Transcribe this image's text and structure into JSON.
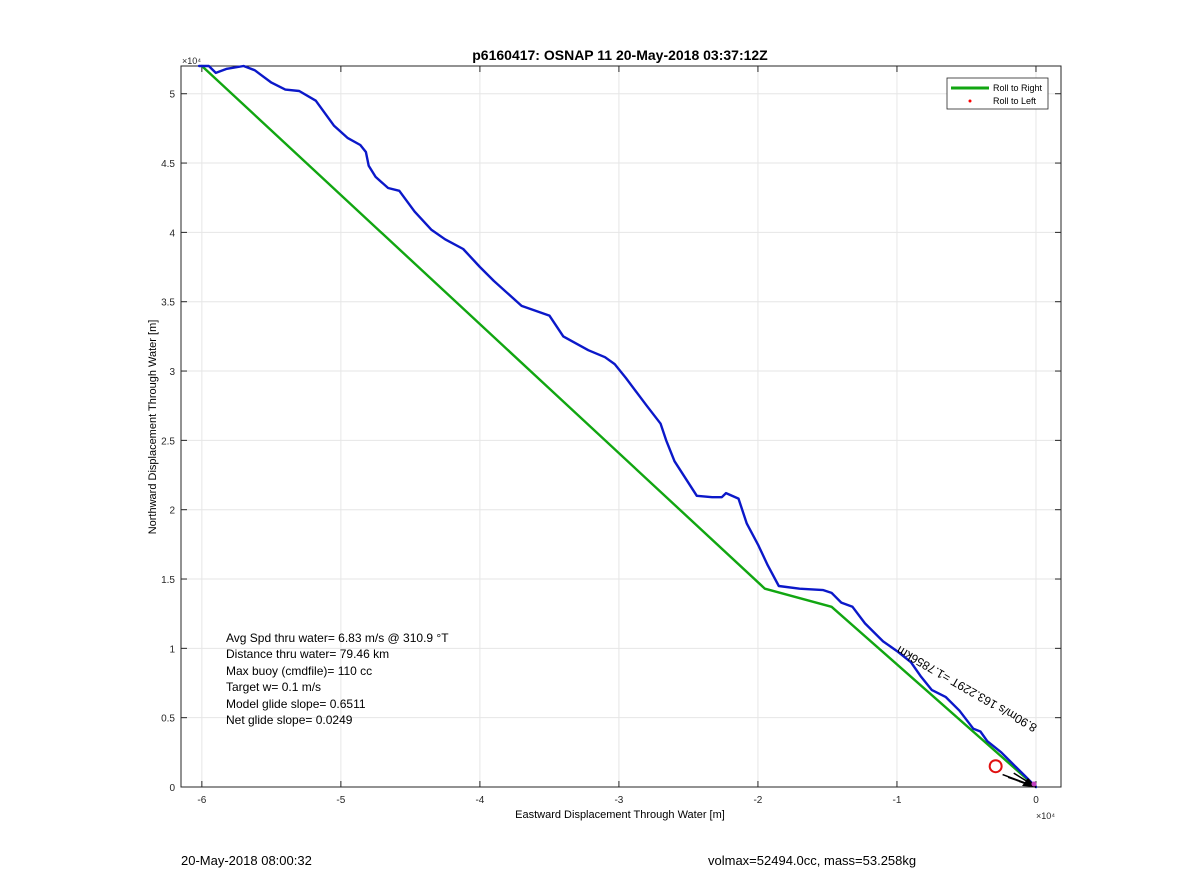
{
  "footer": {
    "left": "20-May-2018 08:00:32",
    "right": "volmax=52494.0cc, mass=53.258kg"
  },
  "chart_data": {
    "type": "line",
    "title": "p6160417: OSNAP 11 20-May-2018 03:37:12Z",
    "xlabel": "Eastward Displacement Through Water [m]",
    "ylabel": "Northward Displacement Through Water [m]",
    "x_exponent_label": "×10⁴",
    "y_exponent_label": "×10⁴",
    "xlim": [
      -61500,
      1800
    ],
    "ylim": [
      0,
      52000
    ],
    "xticks": [
      -6,
      -5,
      -4,
      -3,
      -2,
      -1,
      0
    ],
    "yticks": [
      0,
      0.5,
      1,
      1.5,
      2,
      2.5,
      3,
      3.5,
      4,
      4.5,
      5
    ],
    "tick_scale": 10000,
    "grid": true,
    "legend_position": "top-right",
    "legend": [
      {
        "name": "Roll to Right",
        "color": "#11a611",
        "marker": "line"
      },
      {
        "name": "Roll to Left",
        "color": "#ff0000",
        "marker": "dot"
      }
    ],
    "series": [
      {
        "name": "",
        "color": "#0b18c9",
        "x": [
          0,
          -300,
          -800,
          -1500,
          -2500,
          -3500,
          -4000,
          -4500,
          -5500,
          -6500,
          -7500,
          -8300,
          -9000,
          -10000,
          -11000,
          -12300,
          -13200,
          -14000,
          -14500,
          -14700,
          -15300,
          -17000,
          -18500,
          -19300,
          -20000,
          -20800,
          -21400,
          -22300,
          -22600,
          -23300,
          -24400,
          -26000,
          -26600,
          -27000,
          -28000,
          -29500,
          -30300,
          -31000,
          -32200,
          -34000,
          -35000,
          -37000,
          -39000,
          -40000,
          -41200,
          -42500,
          -43500,
          -44700,
          -45800,
          -46600,
          -47500,
          -48000,
          -48200,
          -48600,
          -49500,
          -50500,
          -51800,
          -53000,
          -54000,
          -55000,
          -55800,
          -56200,
          -57000,
          -58200,
          -59000,
          -59500,
          -60200
        ],
        "y": [
          0,
          300,
          800,
          1500,
          2500,
          3300,
          4000,
          4200,
          5500,
          6500,
          7000,
          8000,
          9000,
          9800,
          10500,
          11800,
          13000,
          13300,
          13800,
          14000,
          14200,
          14300,
          14500,
          16000,
          17500,
          19000,
          20800,
          21200,
          20900,
          20900,
          21000,
          23500,
          25000,
          26200,
          27500,
          29500,
          30500,
          31000,
          31500,
          32500,
          34000,
          34700,
          36500,
          37500,
          38800,
          39500,
          40200,
          41500,
          43000,
          43200,
          44000,
          44800,
          45800,
          46300,
          46800,
          47700,
          49500,
          50200,
          50300,
          50800,
          51400,
          51700,
          52000,
          51800,
          51500,
          52000,
          52000
        ]
      },
      {
        "name": "Roll to Right",
        "color": "#11a611",
        "x": [
          0,
          -14700,
          -19500,
          -60000
        ],
        "y": [
          0,
          13000,
          14300,
          52000
        ]
      }
    ],
    "annotations": [
      {
        "type": "text",
        "text": "Avg Spd thru water=  6.83 m/s @ 310.9 °T"
      },
      {
        "type": "text",
        "text": "Distance thru water= 79.46 km"
      },
      {
        "type": "text",
        "text": "Max buoy (cmdfile)= 110 cc"
      },
      {
        "type": "text",
        "text": "Target w= 0.1 m/s"
      },
      {
        "type": "text",
        "text": "Model glide slope= 0.6511"
      },
      {
        "type": "text",
        "text": "Net glide slope= 0.0249"
      },
      {
        "type": "rotated_text",
        "text": "8.90m/s 163.229T =1.7856km",
        "x": -9800,
        "y": 10200,
        "angle_deg": 30
      },
      {
        "type": "circle",
        "x": -2900,
        "y": 1500,
        "color": "#e01010"
      }
    ]
  }
}
